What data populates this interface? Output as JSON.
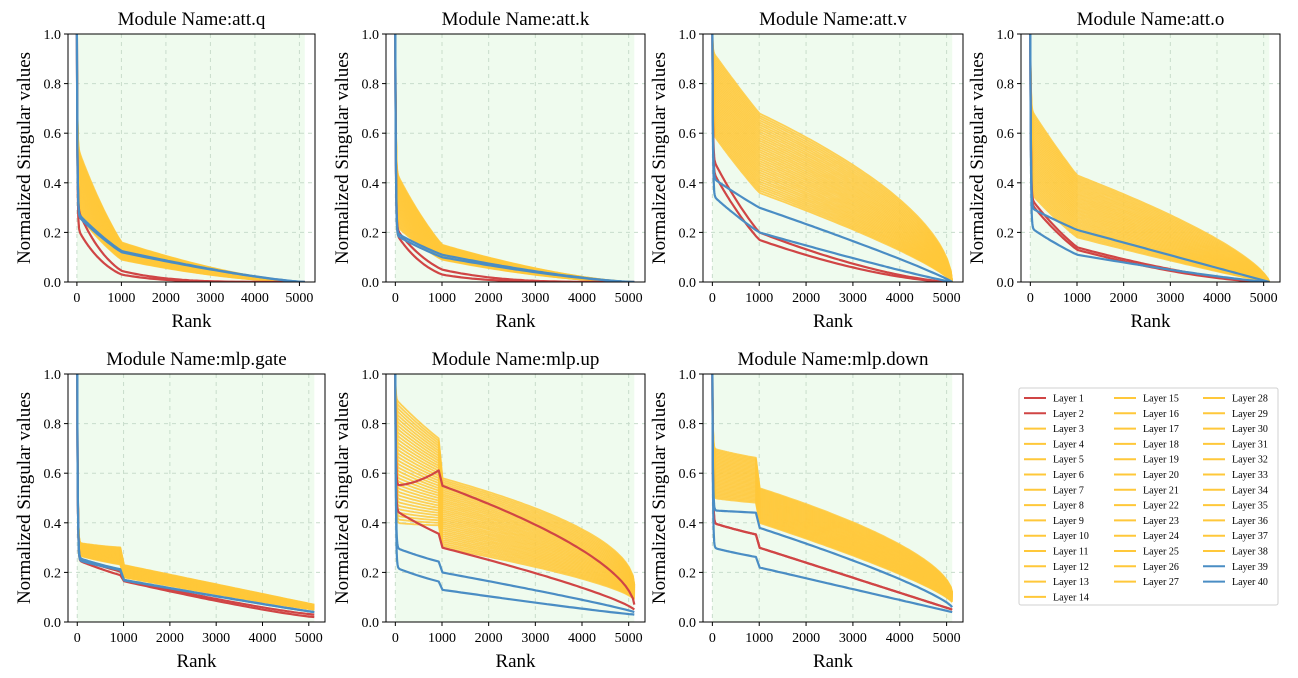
{
  "chart_data": [
    {
      "type": "line",
      "title": "Module Name:att.q",
      "xlabel": "Rank",
      "ylabel": "Normalized Singular values",
      "xlim": [
        -200,
        5350
      ],
      "ylim": [
        0,
        1.0
      ],
      "xticks": [
        0,
        1000,
        2000,
        3000,
        4000,
        5000
      ],
      "yticks": [
        0.0,
        0.2,
        0.4,
        0.6,
        0.8,
        1.0
      ],
      "grid": true,
      "n_ranks": 5120,
      "groups": {
        "early": {
          "layers": [
            1,
            2
          ],
          "start": [
            0.3,
            0.22
          ],
          "body_at_1000": [
            0.045,
            0.03
          ],
          "sharpness": [
            4.0,
            4.5
          ],
          "end": [
            0.0,
            0.0
          ]
        },
        "middle": {
          "layers": [
            3,
            38
          ],
          "start": [
            0.28,
            0.55
          ],
          "body_at_1000": [
            0.09,
            0.16
          ],
          "sharpness": [
            1.7,
            1.5
          ],
          "end": [
            0.0,
            0.0
          ]
        },
        "late": {
          "layers": [
            39,
            40
          ],
          "start": [
            0.28,
            0.27
          ],
          "body_at_1000": [
            0.125,
            0.12
          ],
          "sharpness": [
            1.3,
            1.3
          ],
          "end": [
            0.0,
            0.0
          ]
        }
      }
    },
    {
      "type": "line",
      "title": "Module Name:att.k",
      "xlabel": "Rank",
      "ylabel": "Normalized Singular values",
      "xlim": [
        -200,
        5350
      ],
      "ylim": [
        0,
        1.0
      ],
      "xticks": [
        0,
        1000,
        2000,
        3000,
        4000,
        5000
      ],
      "yticks": [
        0.0,
        0.2,
        0.4,
        0.6,
        0.8,
        1.0
      ],
      "grid": true,
      "n_ranks": 5120,
      "groups": {
        "early": {
          "layers": [
            1,
            2
          ],
          "start": [
            0.22,
            0.2
          ],
          "body_at_1000": [
            0.05,
            0.03
          ],
          "sharpness": [
            3.5,
            4.5
          ],
          "end": [
            0.0,
            0.0
          ]
        },
        "middle": {
          "layers": [
            3,
            38
          ],
          "start": [
            0.23,
            0.45
          ],
          "body_at_1000": [
            0.09,
            0.15
          ],
          "sharpness": [
            1.7,
            1.5
          ],
          "end": [
            0.0,
            0.0
          ]
        },
        "late": {
          "layers": [
            39,
            40
          ],
          "start": [
            0.2,
            0.19
          ],
          "body_at_1000": [
            0.11,
            0.1
          ],
          "sharpness": [
            1.4,
            1.4
          ],
          "end": [
            0.0,
            0.0
          ]
        }
      }
    },
    {
      "type": "line",
      "title": "Module Name:att.v",
      "xlabel": "Rank",
      "ylabel": "Normalized Singular values",
      "xlim": [
        -200,
        5350
      ],
      "ylim": [
        0,
        1.0
      ],
      "xticks": [
        0,
        1000,
        2000,
        3000,
        4000,
        5000
      ],
      "yticks": [
        0.0,
        0.2,
        0.4,
        0.6,
        0.8,
        1.0
      ],
      "grid": true,
      "n_ranks": 5120,
      "groups": {
        "early": {
          "layers": [
            1,
            2
          ],
          "start": [
            0.5,
            0.45
          ],
          "body_at_1000": [
            0.2,
            0.17
          ],
          "sharpness": [
            1.5,
            1.6
          ],
          "end": [
            0.0,
            0.0
          ]
        },
        "middle": {
          "layers": [
            3,
            38
          ],
          "start": [
            0.6,
            0.93
          ],
          "body_at_1000": [
            0.36,
            0.68
          ],
          "sharpness": [
            0.8,
            0.55
          ],
          "end": [
            0.0,
            0.0
          ]
        },
        "late": {
          "layers": [
            39,
            40
          ],
          "start": [
            0.42,
            0.35
          ],
          "body_at_1000": [
            0.3,
            0.2
          ],
          "sharpness": [
            0.9,
            1.1
          ],
          "end": [
            0.0,
            0.0
          ]
        }
      }
    },
    {
      "type": "line",
      "title": "Module Name:att.o",
      "xlabel": "Rank",
      "ylabel": "Normalized Singular values",
      "xlim": [
        -200,
        5350
      ],
      "ylim": [
        0,
        1.0
      ],
      "xticks": [
        0,
        1000,
        2000,
        3000,
        4000,
        5000
      ],
      "yticks": [
        0.0,
        0.2,
        0.4,
        0.6,
        0.8,
        1.0
      ],
      "grid": true,
      "n_ranks": 5120,
      "groups": {
        "early": {
          "layers": [
            1,
            2
          ],
          "start": [
            0.34,
            0.32
          ],
          "body_at_1000": [
            0.14,
            0.13
          ],
          "sharpness": [
            1.5,
            1.6
          ],
          "end": [
            0.0,
            0.0
          ]
        },
        "middle": {
          "layers": [
            3,
            38
          ],
          "start": [
            0.36,
            0.7
          ],
          "body_at_1000": [
            0.18,
            0.43
          ],
          "sharpness": [
            1.1,
            0.7
          ],
          "end": [
            0.0,
            0.0
          ]
        },
        "late": {
          "layers": [
            39,
            40
          ],
          "start": [
            0.3,
            0.22
          ],
          "body_at_1000": [
            0.21,
            0.11
          ],
          "sharpness": [
            1.0,
            1.2
          ],
          "end": [
            0.0,
            0.0
          ]
        }
      }
    },
    {
      "type": "line",
      "title": "Module Name:mlp.gate",
      "xlabel": "Rank",
      "ylabel": "Normalized Singular values",
      "xlim": [
        -200,
        5350
      ],
      "ylim": [
        0,
        1.0
      ],
      "xticks": [
        0,
        1000,
        2000,
        3000,
        4000,
        5000
      ],
      "yticks": [
        0.0,
        0.2,
        0.4,
        0.6,
        0.8,
        1.0
      ],
      "grid": true,
      "n_ranks": 5120,
      "groups": {
        "early": {
          "layers": [
            1,
            2
          ],
          "start": [
            0.26,
            0.25
          ],
          "body_at_1000": [
            0.17,
            0.165
          ],
          "sharpness": [
            1.2,
            1.2
          ],
          "end": [
            0.03,
            0.02
          ]
        },
        "middle": {
          "layers": [
            3,
            38
          ],
          "start": [
            0.27,
            0.32
          ],
          "body_at_1000": [
            0.18,
            0.23
          ],
          "sharpness": [
            1.1,
            1.0
          ],
          "end": [
            0.05,
            0.07
          ]
        },
        "late": {
          "layers": [
            39,
            40
          ],
          "start": [
            0.26,
            0.25
          ],
          "body_at_1000": [
            0.17,
            0.168
          ],
          "sharpness": [
            1.05,
            1.05
          ],
          "end": [
            0.04,
            0.04
          ]
        }
      }
    },
    {
      "type": "line",
      "title": "Module Name:mlp.up",
      "xlabel": "Rank",
      "ylabel": "Normalized Singular values",
      "xlim": [
        -200,
        5350
      ],
      "ylim": [
        0,
        1.0
      ],
      "xticks": [
        0,
        1000,
        2000,
        3000,
        4000,
        5000
      ],
      "yticks": [
        0.0,
        0.2,
        0.4,
        0.6,
        0.8,
        1.0
      ],
      "grid": true,
      "n_ranks": 5120,
      "groups": {
        "early": {
          "layers": [
            1,
            2
          ],
          "start": [
            0.55,
            0.45
          ],
          "body_at_1000": [
            0.55,
            0.3
          ],
          "sharpness": [
            0.6,
            0.8
          ],
          "end": [
            0.07,
            0.05
          ]
        },
        "middle": {
          "layers": [
            3,
            38
          ],
          "start": [
            0.4,
            0.9
          ],
          "body_at_1000": [
            0.3,
            0.58
          ],
          "sharpness": [
            0.7,
            0.5
          ],
          "end": [
            0.09,
            0.15
          ]
        },
        "late": {
          "layers": [
            39,
            40
          ],
          "start": [
            0.3,
            0.22
          ],
          "body_at_1000": [
            0.2,
            0.13
          ],
          "sharpness": [
            0.9,
            1.1
          ],
          "end": [
            0.04,
            0.03
          ]
        }
      }
    },
    {
      "type": "line",
      "title": "Module Name:mlp.down",
      "xlabel": "Rank",
      "ylabel": "Normalized Singular values",
      "xlim": [
        -200,
        5350
      ],
      "ylim": [
        0,
        1.0
      ],
      "xticks": [
        0,
        1000,
        2000,
        3000,
        4000,
        5000
      ],
      "yticks": [
        0.0,
        0.2,
        0.4,
        0.6,
        0.8,
        1.0
      ],
      "grid": true,
      "n_ranks": 5120,
      "groups": {
        "early": {
          "layers": [
            1,
            2
          ],
          "start": [
            0.4,
            0.4
          ],
          "body_at_1000": [
            0.3,
            0.3
          ],
          "sharpness": [
            1.0,
            1.0
          ],
          "end": [
            0.05,
            0.05
          ]
        },
        "middle": {
          "layers": [
            3,
            38
          ],
          "start": [
            0.5,
            0.7
          ],
          "body_at_1000": [
            0.4,
            0.54
          ],
          "sharpness": [
            0.8,
            0.6
          ],
          "end": [
            0.08,
            0.12
          ]
        },
        "late": {
          "layers": [
            39,
            40
          ],
          "start": [
            0.45,
            0.3
          ],
          "body_at_1000": [
            0.38,
            0.22
          ],
          "sharpness": [
            0.8,
            1.0
          ],
          "end": [
            0.06,
            0.04
          ]
        }
      }
    }
  ],
  "legend": {
    "placement": "bottom-right",
    "entries": [
      "Layer 1",
      "Layer 2",
      "Layer 3",
      "Layer 4",
      "Layer 5",
      "Layer 6",
      "Layer 7",
      "Layer 8",
      "Layer 9",
      "Layer 10",
      "Layer 11",
      "Layer 12",
      "Layer 13",
      "Layer 14",
      "Layer 15",
      "Layer 16",
      "Layer 17",
      "Layer 18",
      "Layer 19",
      "Layer 20",
      "Layer 21",
      "Layer 22",
      "Layer 23",
      "Layer 24",
      "Layer 25",
      "Layer 26",
      "Layer 27",
      "Layer 28",
      "Layer 29",
      "Layer 30",
      "Layer 31",
      "Layer 32",
      "Layer 33",
      "Layer 34",
      "Layer 35",
      "Layer 36",
      "Layer 37",
      "Layer 38",
      "Layer 39",
      "Layer 40"
    ],
    "columns": 3
  },
  "colors": {
    "early": "#d04545",
    "middle": "#ffc83a",
    "late": "#4a8dc4",
    "plot_bg": "#effbee",
    "grid": "#c8dccb"
  }
}
